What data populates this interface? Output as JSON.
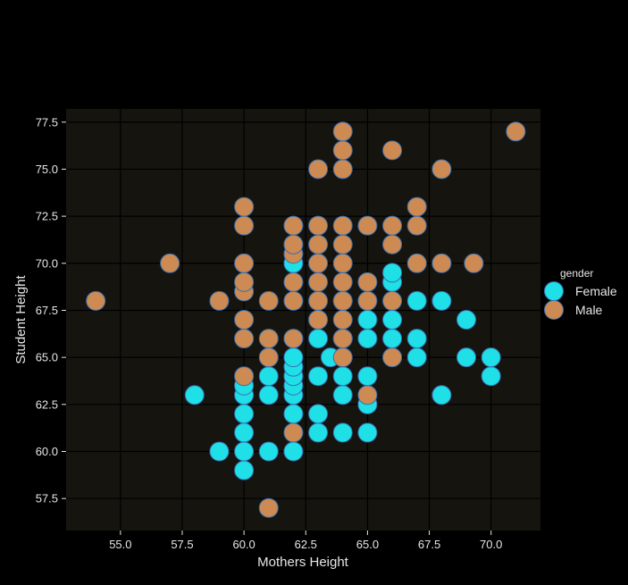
{
  "chart_data": {
    "type": "scatter",
    "xlabel": "Mothers Height",
    "ylabel": "Student Height",
    "xlim": [
      52.8,
      72.0
    ],
    "ylim": [
      55.8,
      78.2
    ],
    "x_ticks": [
      55.0,
      57.5,
      60.0,
      62.5,
      65.0,
      67.5,
      70.0
    ],
    "x_tick_labels": [
      "55.0",
      "57.5",
      "60.0",
      "62.5",
      "65.0",
      "67.5",
      "70.0"
    ],
    "y_ticks": [
      57.5,
      60.0,
      62.5,
      65.0,
      67.5,
      70.0,
      72.5,
      75.0,
      77.5
    ],
    "y_tick_labels": [
      "57.5",
      "60.0",
      "62.5",
      "65.0",
      "67.5",
      "70.0",
      "72.5",
      "75.0",
      "77.5"
    ],
    "grid": true,
    "background_color": "#15140f",
    "grid_color": "#000000",
    "legend": {
      "title": "gender",
      "placement": "right"
    },
    "series": [
      {
        "name": "Female",
        "color": "#1ee0e6",
        "points": [
          [
            58,
            63
          ],
          [
            59,
            60
          ],
          [
            60,
            59
          ],
          [
            60,
            60
          ],
          [
            60,
            61
          ],
          [
            60,
            62
          ],
          [
            60,
            63
          ],
          [
            60,
            63.5
          ],
          [
            61,
            60
          ],
          [
            61,
            63
          ],
          [
            61,
            64
          ],
          [
            62,
            60
          ],
          [
            62,
            62
          ],
          [
            62,
            63
          ],
          [
            62,
            63.5
          ],
          [
            62,
            64
          ],
          [
            62,
            64.5
          ],
          [
            62,
            65
          ],
          [
            62,
            70
          ],
          [
            63,
            61
          ],
          [
            63,
            62
          ],
          [
            63,
            64
          ],
          [
            63,
            66
          ],
          [
            63.5,
            65
          ],
          [
            64,
            61
          ],
          [
            64,
            63
          ],
          [
            64,
            64
          ],
          [
            64,
            66
          ],
          [
            64,
            68
          ],
          [
            65,
            61
          ],
          [
            65,
            62.5
          ],
          [
            65,
            64
          ],
          [
            65,
            66
          ],
          [
            65,
            67
          ],
          [
            66,
            66
          ],
          [
            66,
            67
          ],
          [
            66,
            69
          ],
          [
            66,
            69.5
          ],
          [
            67,
            65
          ],
          [
            67,
            66
          ],
          [
            67,
            68
          ],
          [
            68,
            63
          ],
          [
            68,
            68
          ],
          [
            69,
            65
          ],
          [
            69,
            67
          ],
          [
            70,
            64
          ],
          [
            70,
            65
          ]
        ]
      },
      {
        "name": "Male",
        "color": "#cd8a52",
        "points": [
          [
            54,
            68
          ],
          [
            57,
            70
          ],
          [
            59,
            68
          ],
          [
            60,
            64
          ],
          [
            60,
            66
          ],
          [
            60,
            67
          ],
          [
            60,
            68.5
          ],
          [
            60,
            69
          ],
          [
            60,
            70
          ],
          [
            60,
            72
          ],
          [
            60,
            73
          ],
          [
            61,
            57
          ],
          [
            61,
            65
          ],
          [
            61,
            66
          ],
          [
            61,
            68
          ],
          [
            62,
            61
          ],
          [
            62,
            66
          ],
          [
            62,
            68
          ],
          [
            62,
            69
          ],
          [
            62,
            70.5
          ],
          [
            62,
            71
          ],
          [
            62,
            72
          ],
          [
            63,
            67
          ],
          [
            63,
            68
          ],
          [
            63,
            69
          ],
          [
            63,
            70
          ],
          [
            63,
            71
          ],
          [
            63,
            72
          ],
          [
            63,
            75
          ],
          [
            64,
            65
          ],
          [
            64,
            66
          ],
          [
            64,
            67
          ],
          [
            64,
            68
          ],
          [
            64,
            69
          ],
          [
            64,
            70
          ],
          [
            64,
            71
          ],
          [
            64,
            72
          ],
          [
            64,
            75
          ],
          [
            64,
            76
          ],
          [
            64,
            77
          ],
          [
            65,
            63
          ],
          [
            65,
            68
          ],
          [
            65,
            69
          ],
          [
            65,
            72
          ],
          [
            66,
            65
          ],
          [
            66,
            68
          ],
          [
            66,
            71
          ],
          [
            66,
            72
          ],
          [
            66,
            76
          ],
          [
            67,
            70
          ],
          [
            67,
            72
          ],
          [
            67,
            73
          ],
          [
            68,
            70
          ],
          [
            68,
            75
          ],
          [
            69.3,
            70
          ],
          [
            71,
            77
          ]
        ]
      }
    ]
  }
}
